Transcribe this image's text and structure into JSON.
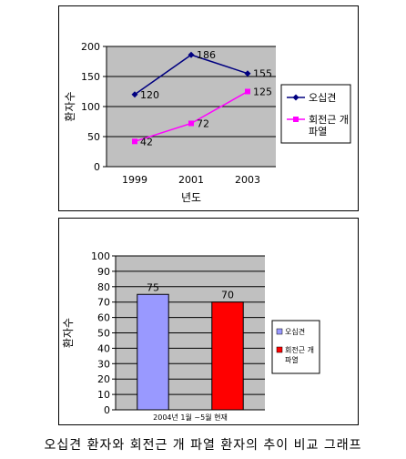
{
  "caption": "오십견 환자와 회전근 개 파열 환자의 추이 비교 그래프",
  "colors": {
    "plot_bg": "#c0c0c0",
    "line1": "#000080",
    "line2": "#ff00ff",
    "bar1": "#9999ff",
    "bar2": "#ff0000"
  },
  "chart_data": [
    {
      "type": "line",
      "x": [
        "1999",
        "2001",
        "2003"
      ],
      "series": [
        {
          "name": "오십견",
          "values": [
            120,
            186,
            155
          ]
        },
        {
          "name": "회전근 개 파열",
          "values": [
            42,
            72,
            125
          ]
        }
      ],
      "xlabel": "년도",
      "ylabel": "환자수",
      "ylim": [
        0,
        200
      ],
      "yticks": [
        "0",
        "50",
        "100",
        "150",
        "200"
      ],
      "grid": true,
      "legend": "right"
    },
    {
      "type": "bar",
      "categories": [
        "오십견",
        "회전근 개 파열"
      ],
      "values": [
        75,
        70
      ],
      "xlabel": "2004년 1월 ~5월 현재",
      "ylabel": "환자수",
      "ylim": [
        0,
        100
      ],
      "yticks": [
        "0",
        "10",
        "20",
        "30",
        "40",
        "50",
        "60",
        "70",
        "80",
        "90",
        "100"
      ],
      "grid": true,
      "legend": "right"
    }
  ]
}
